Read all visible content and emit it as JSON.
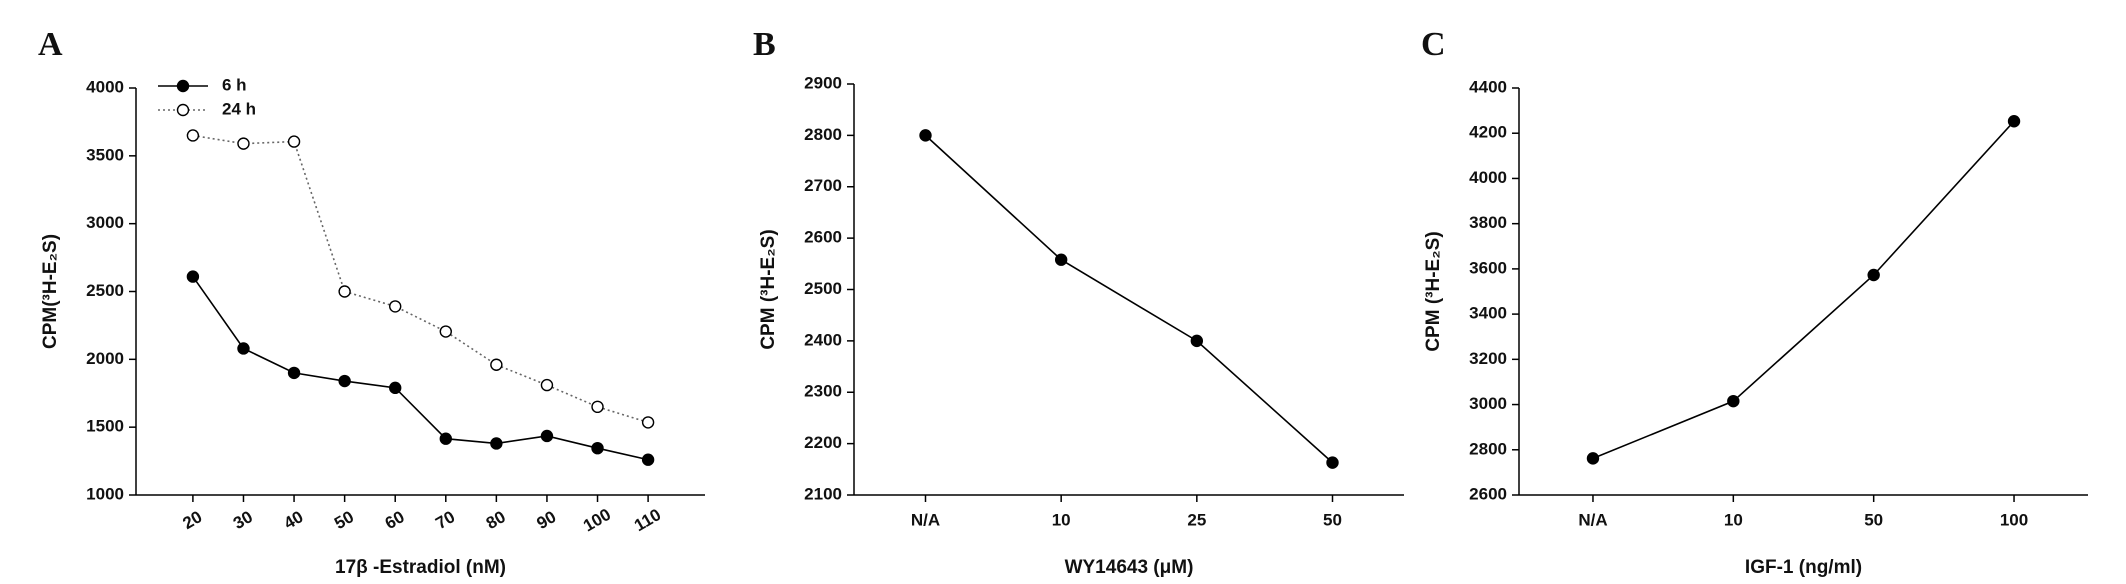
{
  "chart_data": [
    {
      "type": "line",
      "panel": "A",
      "ylabel": "CPM(³H-E₂S)",
      "xlabel": "17β -Estradiol (nM)",
      "categories": [
        "20",
        "30",
        "40",
        "50",
        "60",
        "70",
        "80",
        "90",
        "100",
        "110"
      ],
      "series": [
        {
          "name": "6 h",
          "color": "#000000",
          "dash": "solid",
          "marker_fill": "#000000",
          "values": [
            2610,
            2080,
            1900,
            1840,
            1790,
            1415,
            1380,
            1435,
            1345,
            1260
          ]
        },
        {
          "name": "24 h",
          "color": "#666666",
          "dash": "dotted",
          "marker_fill": "#ffffff",
          "values": [
            3650,
            3590,
            3605,
            2500,
            2390,
            2205,
            1960,
            1810,
            1650,
            1535
          ]
        }
      ],
      "ylim": [
        1000,
        4000
      ],
      "yticks": [
        1000,
        1500,
        2000,
        2500,
        3000,
        3500,
        4000
      ],
      "legend": "upper left",
      "xtick_rotation": -30
    },
    {
      "type": "line",
      "panel": "B",
      "ylabel": "CPM (³H-E₂S)",
      "xlabel": "WY14643 (μM)",
      "categories": [
        "N/A",
        "10",
        "25",
        "50"
      ],
      "color": "#000000",
      "values": [
        2800,
        2558,
        2400,
        2163
      ],
      "ylim": [
        2100,
        2900
      ],
      "yticks": [
        2100,
        2200,
        2300,
        2400,
        2500,
        2600,
        2700,
        2800,
        2900
      ]
    },
    {
      "type": "line",
      "panel": "C",
      "ylabel": "CPM (³H-E₂S)",
      "xlabel": "IGF-1 (ng/ml)",
      "categories": [
        "N/A",
        "10",
        "50",
        "100"
      ],
      "color": "#000000",
      "values": [
        2762,
        3015,
        3573,
        4253
      ],
      "ylim": [
        2600,
        4400
      ],
      "yticks": [
        2600,
        2800,
        3000,
        3200,
        3400,
        3600,
        3800,
        4000,
        4200,
        4400
      ]
    }
  ]
}
